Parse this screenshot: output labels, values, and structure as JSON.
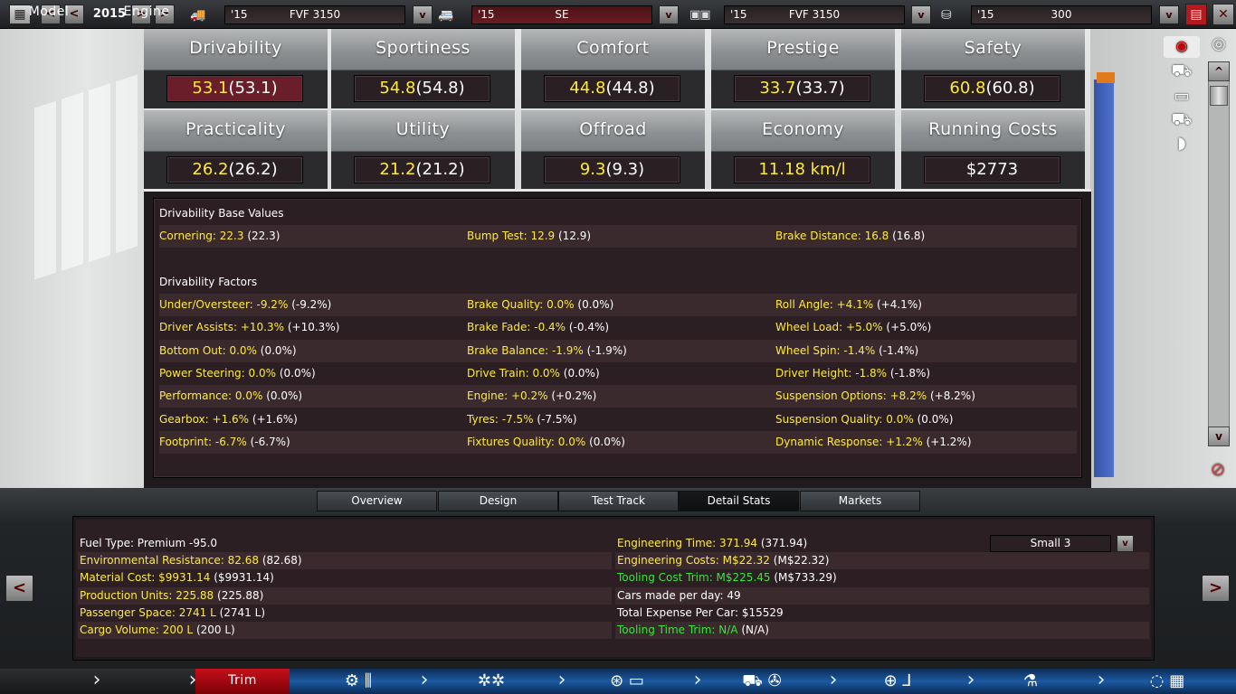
{
  "topbar": {
    "year": "2015",
    "prev_fast": "<",
    "prev": "<",
    "next": ">",
    "next_fast": ">",
    "fields": [
      {
        "year": "'15",
        "value": "FVF 3150",
        "highlight": false
      },
      {
        "year": "'15",
        "value": "SE",
        "highlight": true
      },
      {
        "year": "'15",
        "value": "FVF 3150",
        "highlight": false
      },
      {
        "year": "'15",
        "value": "300",
        "highlight": false
      }
    ],
    "dropdown_label": "v"
  },
  "ratings": [
    {
      "label": "Drivability",
      "value": "53.1",
      "base": "(53.1)",
      "highlight": true
    },
    {
      "label": "Sportiness",
      "value": "54.8",
      "base": "(54.8)",
      "highlight": false
    },
    {
      "label": "Comfort",
      "value": "44.8",
      "base": "(44.8)",
      "highlight": false
    },
    {
      "label": "Prestige",
      "value": "33.7",
      "base": "(33.7)",
      "highlight": false
    },
    {
      "label": "Safety",
      "value": "60.8",
      "base": "(60.8)",
      "highlight": false
    },
    {
      "label": "Practicality",
      "value": "26.2",
      "base": "(26.2)",
      "highlight": false
    },
    {
      "label": "Utility",
      "value": "21.2",
      "base": "(21.2)",
      "highlight": false
    },
    {
      "label": "Offroad",
      "value": "9.3",
      "base": "(9.3)",
      "highlight": false
    },
    {
      "label": "Economy",
      "value": "11.18 km/l",
      "base": "",
      "highlight": false
    },
    {
      "label": "Running Costs",
      "value": "$2773",
      "base": "",
      "highlight": false,
      "white": true
    }
  ],
  "detail": {
    "base_header": "Drivability Base Values",
    "base_values": [
      {
        "k": "Cornering: 22.3",
        "v": "(22.3)"
      },
      {
        "k": "Bump Test: 12.9",
        "v": "(12.9)"
      },
      {
        "k": "Brake Distance: 16.8",
        "v": "(16.8)"
      }
    ],
    "factors_header": "Drivability Factors",
    "factors": [
      [
        {
          "k": "Under/Oversteer: -9.2%",
          "v": "(-9.2%)"
        },
        {
          "k": "Brake Quality: 0.0%",
          "v": "(0.0%)"
        },
        {
          "k": "Roll Angle: +4.1%",
          "v": "(+4.1%)"
        }
      ],
      [
        {
          "k": "Driver Assists: +10.3%",
          "v": "(+10.3%)"
        },
        {
          "k": "Brake Fade: -0.4%",
          "v": "(-0.4%)"
        },
        {
          "k": "Wheel Load: +5.0%",
          "v": "(+5.0%)"
        }
      ],
      [
        {
          "k": "Bottom Out: 0.0%",
          "v": "(0.0%)"
        },
        {
          "k": "Brake Balance: -1.9%",
          "v": "(-1.9%)"
        },
        {
          "k": "Wheel Spin: -1.4%",
          "v": "(-1.4%)"
        }
      ],
      [
        {
          "k": "Power Steering: 0.0%",
          "v": "(0.0%)"
        },
        {
          "k": "Drive Train: 0.0%",
          "v": "(0.0%)"
        },
        {
          "k": "Driver Height: -1.8%",
          "v": "(-1.8%)"
        }
      ],
      [
        {
          "k": "Performance: 0.0%",
          "v": "(0.0%)"
        },
        {
          "k": "Engine: +0.2%",
          "v": "(+0.2%)"
        },
        {
          "k": "Suspension Options: +8.2%",
          "v": "(+8.2%)"
        }
      ],
      [
        {
          "k": "Gearbox: +1.6%",
          "v": "(+1.6%)"
        },
        {
          "k": "Tyres: -7.5%",
          "v": "(-7.5%)"
        },
        {
          "k": "Suspension Quality: 0.0%",
          "v": "(0.0%)"
        }
      ],
      [
        {
          "k": "Footprint: -6.7%",
          "v": "(-6.7%)"
        },
        {
          "k": "Fixtures Quality: 0.0%",
          "v": "(0.0%)"
        },
        {
          "k": "Dynamic Response: +1.2%",
          "v": "(+1.2%)"
        }
      ]
    ]
  },
  "scroll": {
    "up": "^",
    "down": "v"
  },
  "tabs": [
    "Overview",
    "Design",
    "Test Track",
    "Detail Stats",
    "Markets"
  ],
  "active_tab": "Detail Stats",
  "stats_left": [
    {
      "k": "Fuel Type: Premium -95.0",
      "v": "",
      "color": "white"
    },
    {
      "k": "Environmental Resistance: 82.68",
      "v": "(82.68)",
      "color": "yellow"
    },
    {
      "k": "Material Cost: $9931.14",
      "v": "($9931.14)",
      "color": "yellow"
    },
    {
      "k": "Production Units: 225.88",
      "v": "(225.88)",
      "color": "yellow"
    },
    {
      "k": "Passenger Space: 2741 L",
      "v": "(2741 L)",
      "color": "yellow"
    },
    {
      "k": "Cargo Volume: 200 L",
      "v": "(200 L)",
      "color": "yellow"
    }
  ],
  "stats_right": [
    {
      "k": "Engineering Time: 371.94",
      "v": "(371.94)",
      "color": "yellow"
    },
    {
      "k": "Engineering Costs: M$22.32",
      "v": "(M$22.32)",
      "color": "yellow"
    },
    {
      "k": "Tooling Cost Trim: M$225.45",
      "v": "(M$733.29)",
      "color": "green"
    },
    {
      "k": "Cars made per day: 49",
      "v": "",
      "color": "white"
    },
    {
      "k": "Total Expense Per Car: $15529",
      "v": "",
      "color": "white"
    },
    {
      "k": "Tooling Time Trim: N/A",
      "v": "(N/A)",
      "color": "green"
    }
  ],
  "select": {
    "value": "Small 3",
    "button": "v"
  },
  "side_nav": {
    "left": "<",
    "right": ">"
  },
  "nav": {
    "model": "Model",
    "engine": "Engine",
    "trim": "Trim"
  },
  "colors": {
    "accent_yellow": "#ffea3a",
    "accent_green": "#39e33c",
    "trim_red": "#c4101a",
    "nav_blue": "#1c5aa3"
  }
}
